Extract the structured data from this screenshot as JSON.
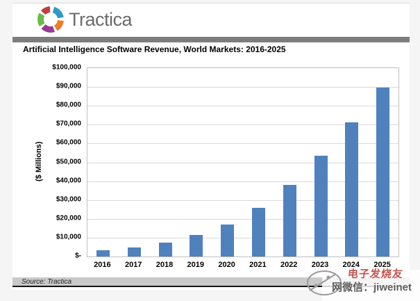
{
  "header": {
    "brand": "Tractica"
  },
  "chart": {
    "title": "Artificial Intelligence Software Revenue, World Markets: 2016-2025",
    "ylabel": "($ Millions)",
    "source": "Source: Tractica"
  },
  "chart_data": {
    "type": "bar",
    "title": "Artificial Intelligence Software Revenue, World Markets: 2016-2025",
    "categories": [
      "2016",
      "2017",
      "2018",
      "2019",
      "2020",
      "2021",
      "2022",
      "2023",
      "2024",
      "2025"
    ],
    "values": [
      3200,
      4800,
      7200,
      11300,
      17000,
      26000,
      37900,
      53400,
      71100,
      89800
    ],
    "xlabel": "",
    "ylabel": "($ Millions)",
    "unit": "US$ millions",
    "ylim": [
      0,
      100000
    ],
    "ytick_step": 10000,
    "ytick_labels": [
      "$-",
      "$10,000",
      "$20,000",
      "$30,000",
      "$40,000",
      "$50,000",
      "$60,000",
      "$70,000",
      "$80,000",
      "$90,000",
      "$100,000"
    ],
    "grid": true,
    "legend": false,
    "bar_color": "#4F81BD",
    "source": "Source: Tractica"
  },
  "watermark": {
    "line1": "电子发烧友",
    "line2": "网微信：jiweinet"
  },
  "brand_colors": {
    "red": "#C43D3B",
    "teal": "#2E9CC9",
    "orange": "#EE7D23",
    "purple": "#993B93",
    "green": "#68BB45",
    "logo_text": "#6B6B6B",
    "divider_gray": "#7D7D7D",
    "bar_blue": "#4F81BD"
  }
}
